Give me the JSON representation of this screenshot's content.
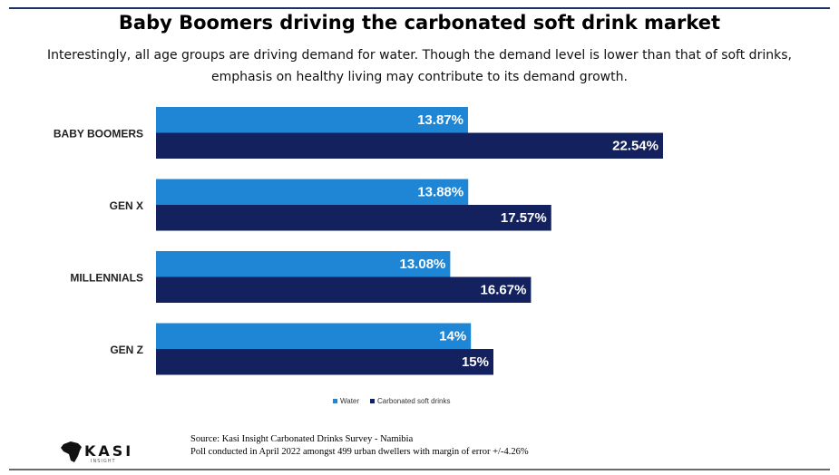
{
  "chart_data": {
    "type": "bar",
    "orientation": "horizontal",
    "title": "Baby Boomers driving the carbonated soft drink market",
    "subtitle": "Interestingly, all age groups are driving demand for water. Though the demand level is lower than that of soft drinks, emphasis on healthy living may contribute to its demand growth.",
    "categories": [
      "BABY BOOMERS",
      "GEN X",
      "MILLENNIALS",
      "GEN Z"
    ],
    "series": [
      {
        "name": "Water",
        "color": "#1f86d6",
        "values": [
          13.87,
          13.88,
          13.08,
          14
        ],
        "labels": [
          "13.87%",
          "13.88%",
          "13.08%",
          "14%"
        ]
      },
      {
        "name": "Carbonated soft drinks",
        "color": "#13215e",
        "values": [
          22.54,
          17.57,
          16.67,
          15
        ],
        "labels": [
          "22.54%",
          "17.57%",
          "16.67%",
          "15%"
        ]
      }
    ],
    "xlim": [
      0,
      25
    ],
    "legend_position": "bottom"
  },
  "logo": {
    "text": "KASI",
    "subtext": "INSIGHT"
  },
  "source": {
    "line1": "Source: Kasi Insight Carbonated Drinks Survey - Namibia",
    "line2": "Poll conducted in April 2022 amongst 499  urban dwellers with margin of error +/-4.26%"
  }
}
